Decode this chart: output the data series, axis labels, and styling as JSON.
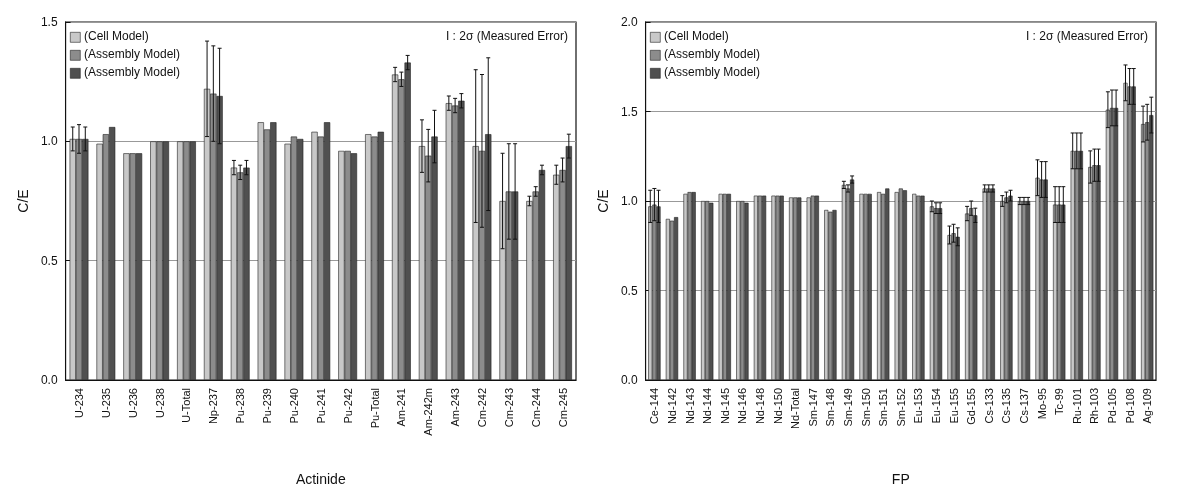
{
  "chart_data": [
    {
      "type": "bar",
      "xlabel": "Actinide",
      "ylabel": "C/E",
      "annotations": [
        "I : 2σ (Measured Error)"
      ],
      "categories": [
        "U-234",
        "U-235",
        "U-236",
        "U-238",
        "U-Total",
        "Np-237",
        "Pu-238",
        "Pu-239",
        "Pu-240",
        "Pu-241",
        "Pu-242",
        "Pu-Total",
        "Am-241",
        "Am-242m",
        "Am-243",
        "Cm-242",
        "Cm-243",
        "Cm-244",
        "Cm-245"
      ],
      "series": [
        {
          "name": "(Cell Model)",
          "color": "#c8c8c8",
          "values": [
            1.01,
            0.99,
            0.95,
            1.0,
            1.0,
            1.22,
            0.89,
            1.08,
            0.99,
            1.04,
            0.96,
            1.03,
            1.28,
            0.98,
            1.16,
            0.98,
            0.75,
            0.75,
            0.86
          ],
          "errors": [
            0.05,
            null,
            null,
            null,
            null,
            0.2,
            0.03,
            null,
            null,
            null,
            null,
            null,
            0.03,
            0.11,
            0.03,
            0.32,
            0.2,
            0.02,
            0.04
          ]
        },
        {
          "name": "(Assembly Model)",
          "color": "#8c8c8c",
          "values": [
            1.01,
            1.03,
            0.95,
            1.0,
            1.0,
            1.2,
            0.87,
            1.05,
            1.02,
            1.02,
            0.96,
            1.02,
            1.26,
            0.94,
            1.15,
            0.96,
            0.79,
            0.79,
            0.88
          ],
          "errors": [
            0.06,
            null,
            null,
            null,
            null,
            0.2,
            0.03,
            null,
            null,
            null,
            null,
            null,
            0.03,
            0.11,
            0.03,
            0.32,
            0.2,
            0.02,
            0.05
          ]
        },
        {
          "name": "(Assembly Model)",
          "color": "#505050",
          "values": [
            1.01,
            1.06,
            0.95,
            1.0,
            1.0,
            1.19,
            0.89,
            1.08,
            1.01,
            1.08,
            0.95,
            1.04,
            1.33,
            1.02,
            1.17,
            1.03,
            0.79,
            0.88,
            0.98
          ],
          "errors": [
            0.05,
            null,
            null,
            null,
            null,
            0.2,
            0.03,
            null,
            null,
            null,
            null,
            null,
            0.03,
            0.11,
            0.03,
            0.32,
            0.2,
            0.02,
            0.05
          ]
        }
      ],
      "ylim": [
        0,
        1.5
      ],
      "yticks": [
        {
          "value": 0,
          "label": "0.0"
        },
        {
          "value": 0.5,
          "label": "0.5"
        },
        {
          "value": 1,
          "label": "1.0"
        },
        {
          "value": 1.5,
          "label": "1.5"
        }
      ],
      "grid": "y",
      "legend": "top left"
    },
    {
      "type": "bar",
      "xlabel": "FP",
      "ylabel": "C/E",
      "annotations": [
        "I : 2σ (Measured Error)"
      ],
      "categories": [
        "Ce-144",
        "Nd-142",
        "Nd-143",
        "Nd-144",
        "Nd-145",
        "Nd-146",
        "Nd-148",
        "Nd-150",
        "Nd-Total",
        "Sm-147",
        "Sm-148",
        "Sm-149",
        "Sm-150",
        "Sm-151",
        "Sm-152",
        "Eu-153",
        "Eu-154",
        "Eu-155",
        "Gd-155",
        "Cs-133",
        "Cs-135",
        "Cs-137",
        "Mo-95",
        "Tc-99",
        "Ru-101",
        "Rh-103",
        "Pd-105",
        "Pd-108",
        "Ag-109"
      ],
      "series": [
        {
          "name": "(Cell Model)",
          "color": "#c8c8c8",
          "values": [
            0.97,
            0.9,
            1.04,
            1.0,
            1.04,
            1.0,
            1.03,
            1.03,
            1.02,
            1.02,
            0.95,
            1.09,
            1.04,
            1.05,
            1.05,
            1.04,
            0.97,
            0.81,
            0.93,
            1.07,
            1.0,
            1.0,
            1.13,
            0.98,
            1.28,
            1.19,
            1.51,
            1.66,
            1.43
          ],
          "errors": [
            0.09,
            null,
            null,
            null,
            null,
            null,
            null,
            null,
            null,
            null,
            null,
            0.02,
            null,
            null,
            null,
            null,
            0.03,
            0.05,
            0.04,
            0.02,
            0.03,
            0.02,
            0.1,
            0.1,
            0.1,
            0.09,
            0.1,
            0.1,
            0.1
          ]
        },
        {
          "name": "(Assembly Model)",
          "color": "#8c8c8c",
          "values": [
            0.98,
            0.89,
            1.05,
            1.0,
            1.04,
            1.0,
            1.03,
            1.03,
            1.02,
            1.03,
            0.94,
            1.07,
            1.04,
            1.04,
            1.07,
            1.03,
            0.96,
            0.82,
            0.96,
            1.07,
            1.02,
            1.0,
            1.12,
            0.98,
            1.28,
            1.2,
            1.52,
            1.64,
            1.44
          ],
          "errors": [
            0.09,
            null,
            null,
            null,
            null,
            null,
            null,
            null,
            null,
            null,
            null,
            0.02,
            null,
            null,
            null,
            null,
            0.03,
            0.05,
            0.04,
            0.02,
            0.03,
            0.02,
            0.1,
            0.1,
            0.1,
            0.09,
            0.1,
            0.1,
            0.1
          ]
        },
        {
          "name": "(Assembly Model)",
          "color": "#505050",
          "values": [
            0.97,
            0.91,
            1.05,
            0.99,
            1.04,
            0.99,
            1.03,
            1.03,
            1.02,
            1.03,
            0.95,
            1.12,
            1.04,
            1.07,
            1.06,
            1.03,
            0.96,
            0.8,
            0.92,
            1.07,
            1.03,
            1.0,
            1.12,
            0.98,
            1.28,
            1.2,
            1.52,
            1.64,
            1.48
          ],
          "errors": [
            0.09,
            null,
            null,
            null,
            null,
            null,
            null,
            null,
            null,
            null,
            null,
            0.02,
            null,
            null,
            null,
            null,
            0.03,
            0.05,
            0.04,
            0.02,
            0.03,
            0.02,
            0.1,
            0.1,
            0.1,
            0.09,
            0.1,
            0.1,
            0.1
          ]
        }
      ],
      "ylim": [
        0,
        2
      ],
      "yticks": [
        {
          "value": 0,
          "label": "0.0"
        },
        {
          "value": 0.5,
          "label": "0.5"
        },
        {
          "value": 1,
          "label": "1.0"
        },
        {
          "value": 1.5,
          "label": "1.5"
        },
        {
          "value": 2,
          "label": "2.0"
        }
      ],
      "grid": "y",
      "legend": "top left"
    }
  ]
}
